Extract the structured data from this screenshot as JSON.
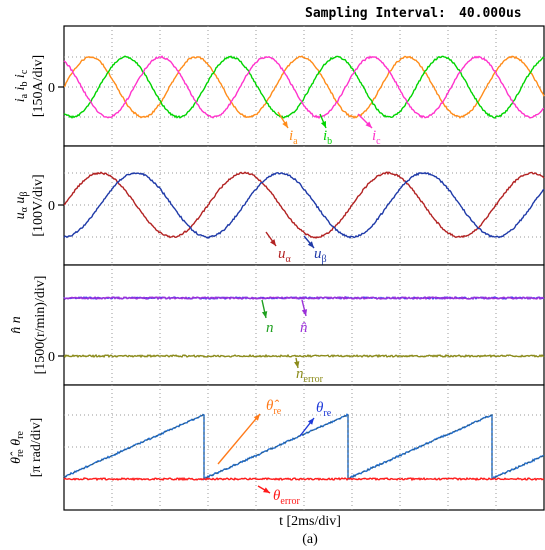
{
  "header": {
    "label": "Sampling Interval:",
    "value": "40.000us"
  },
  "colors": {
    "ia": "#ff8c1a",
    "ib": "#00d400",
    "ic": "#ff33cc",
    "ualpha": "#b22222",
    "ubeta": "#1f3aa8",
    "n": "#4a3df0",
    "nhat": "#9b30d9",
    "nerror": "#8b8b1a",
    "theta": "#1e6fd9",
    "thetahat": "#2f5a7a",
    "thetaerror": "#ff1a1a",
    "arrow_thetahat": "#ff7a1a",
    "arrow_theta": "#1e3ad9",
    "arrow_n": "#1fa01f"
  },
  "xaxis": {
    "label": "t [2ms/div]",
    "divisions": 10
  },
  "caption": "(a)",
  "chart_data": [
    {
      "type": "line",
      "panel": "currents",
      "ylabel": [
        "i",
        "a",
        "i",
        "b",
        "i",
        "c",
        "[150A/div]"
      ],
      "zero_tick": "0",
      "series": [
        {
          "name": "ia",
          "label_main": "i",
          "label_sub": "a",
          "amplitude_div": 1,
          "period_div": 2.2,
          "phase_deg": 0
        },
        {
          "name": "ib",
          "label_main": "i",
          "label_sub": "b",
          "amplitude_div": 1,
          "period_div": 2.2,
          "phase_deg": -120
        },
        {
          "name": "ic",
          "label_main": "i",
          "label_sub": "c",
          "amplitude_div": 1,
          "period_div": 2.2,
          "phase_deg": 120
        }
      ]
    },
    {
      "type": "line",
      "panel": "voltages",
      "ylabel": [
        "u",
        "α",
        "u",
        "β",
        "[100V/div]"
      ],
      "zero_tick": "0",
      "series": [
        {
          "name": "ualpha",
          "label_main": "u",
          "label_sub": "α",
          "amplitude_div": 1,
          "period_div": 3.0,
          "phase_deg": 0
        },
        {
          "name": "ubeta",
          "label_main": "u",
          "label_sub": "β",
          "amplitude_div": 1,
          "period_div": 3.0,
          "phase_deg": -90
        }
      ]
    },
    {
      "type": "line",
      "panel": "speed",
      "ylabel": [
        "n̂",
        "n",
        "[1500(r/min)/div]"
      ],
      "zero_tick": "0",
      "series": [
        {
          "name": "n",
          "label_main": "n",
          "label_sub": "",
          "level_div": 1.0
        },
        {
          "name": "nhat",
          "label_main": "n̂",
          "label_sub": "",
          "level_div": 1.0
        },
        {
          "name": "nerror",
          "label_main": "n",
          "label_sub": "error",
          "level_div": 0.0
        }
      ]
    },
    {
      "type": "line",
      "panel": "angle",
      "ylabel": [
        "θ̂",
        "re",
        "θ",
        "re",
        "[π rad/div]"
      ],
      "series": [
        {
          "name": "theta",
          "label_main": "θ",
          "label_sub": "re",
          "min_div": 0,
          "max_div": 2,
          "period_div": 3.0,
          "first_reset_div": 2.9
        },
        {
          "name": "thetahat",
          "label_main": "θ̂",
          "label_sub": "re",
          "min_div": 0,
          "max_div": 2,
          "period_div": 3.0,
          "first_reset_div": 2.9
        },
        {
          "name": "thetaerror",
          "label_main": "θ",
          "label_sub": "error",
          "level_div": 0.0
        }
      ]
    }
  ]
}
